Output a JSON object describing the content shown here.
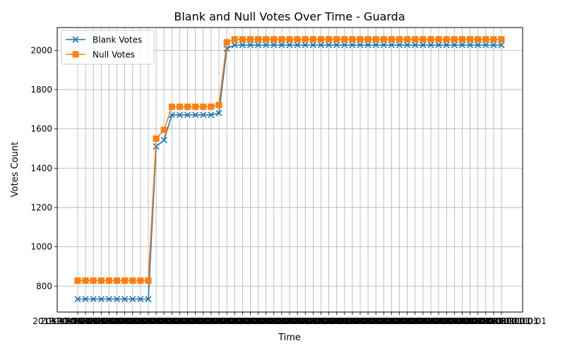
{
  "chart_data": {
    "type": "line",
    "title": "Blank and Null Votes Over Time - Guarda",
    "xlabel": "Time",
    "ylabel": "Votes Count",
    "x_tick_text": "2019-10-06 20:00:01",
    "n_points": 55,
    "ylim": [
      668,
      2116
    ],
    "yticks": [
      800,
      1000,
      1200,
      1400,
      1600,
      1800,
      2000
    ],
    "grid": true,
    "legend_position": "upper-left",
    "series": [
      {
        "name": "Blank Votes",
        "color": "#1f77b4",
        "marker": "x",
        "values": [
          734,
          734,
          734,
          734,
          734,
          734,
          734,
          734,
          734,
          734,
          1511,
          1543,
          1671,
          1671,
          1671,
          1671,
          1671,
          1671,
          1680,
          2009,
          2027,
          2027,
          2027,
          2027,
          2027,
          2027,
          2027,
          2027,
          2027,
          2027,
          2027,
          2027,
          2027,
          2027,
          2027,
          2027,
          2027,
          2027,
          2027,
          2027,
          2027,
          2027,
          2027,
          2027,
          2027,
          2027,
          2027,
          2027,
          2027,
          2027,
          2027,
          2027,
          2027,
          2027,
          2027
        ]
      },
      {
        "name": "Null Votes",
        "color": "#ff7f0e",
        "marker": "s",
        "values": [
          828,
          828,
          828,
          828,
          828,
          828,
          828,
          828,
          828,
          828,
          1551,
          1595,
          1713,
          1713,
          1713,
          1713,
          1713,
          1713,
          1722,
          2041,
          2056,
          2056,
          2056,
          2056,
          2056,
          2056,
          2056,
          2056,
          2056,
          2056,
          2056,
          2056,
          2056,
          2056,
          2056,
          2056,
          2056,
          2056,
          2056,
          2056,
          2056,
          2056,
          2056,
          2056,
          2056,
          2056,
          2056,
          2056,
          2056,
          2056,
          2056,
          2056,
          2056,
          2056,
          2056
        ]
      }
    ]
  }
}
